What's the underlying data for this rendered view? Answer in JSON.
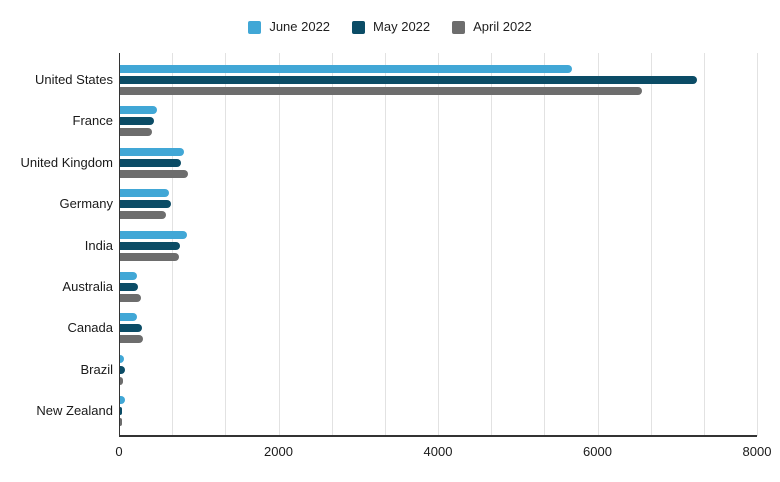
{
  "legend": {
    "items": [
      {
        "label": "June 2022",
        "color": "#41a7d6"
      },
      {
        "label": "May 2022",
        "color": "#0b4c66"
      },
      {
        "label": "April 2022",
        "color": "#6d6d6d"
      }
    ]
  },
  "chart_data": {
    "type": "bar",
    "orientation": "horizontal",
    "title": "",
    "categories": [
      "United States",
      "France",
      "United Kingdom",
      "Germany",
      "India",
      "Australia",
      "Canada",
      "Brazil",
      "New Zealand"
    ],
    "series": [
      {
        "name": "June 2022",
        "color": "#41a7d6",
        "values": [
          5670,
          460,
          800,
          610,
          840,
          210,
          210,
          55,
          60
        ]
      },
      {
        "name": "May 2022",
        "color": "#0b4c66",
        "values": [
          7230,
          430,
          765,
          635,
          755,
          225,
          280,
          65,
          25
        ]
      },
      {
        "name": "April 2022",
        "color": "#6d6d6d",
        "values": [
          6550,
          400,
          855,
          575,
          740,
          260,
          285,
          35,
          30
        ]
      }
    ],
    "xlim": [
      0,
      8000
    ],
    "x_tick_values": [
      0,
      2000,
      4000,
      6000,
      8000
    ],
    "x_tick_labels": [
      "0",
      "2000",
      "4000",
      "6000",
      "8000"
    ],
    "minor_gridlines_per_major": 3,
    "grid": "vertical",
    "legend_position": "top",
    "background": "#ffffff",
    "axis_color": "#333333",
    "gridline_color": "#e2e2e2",
    "text_color": "#1a1a1a"
  }
}
